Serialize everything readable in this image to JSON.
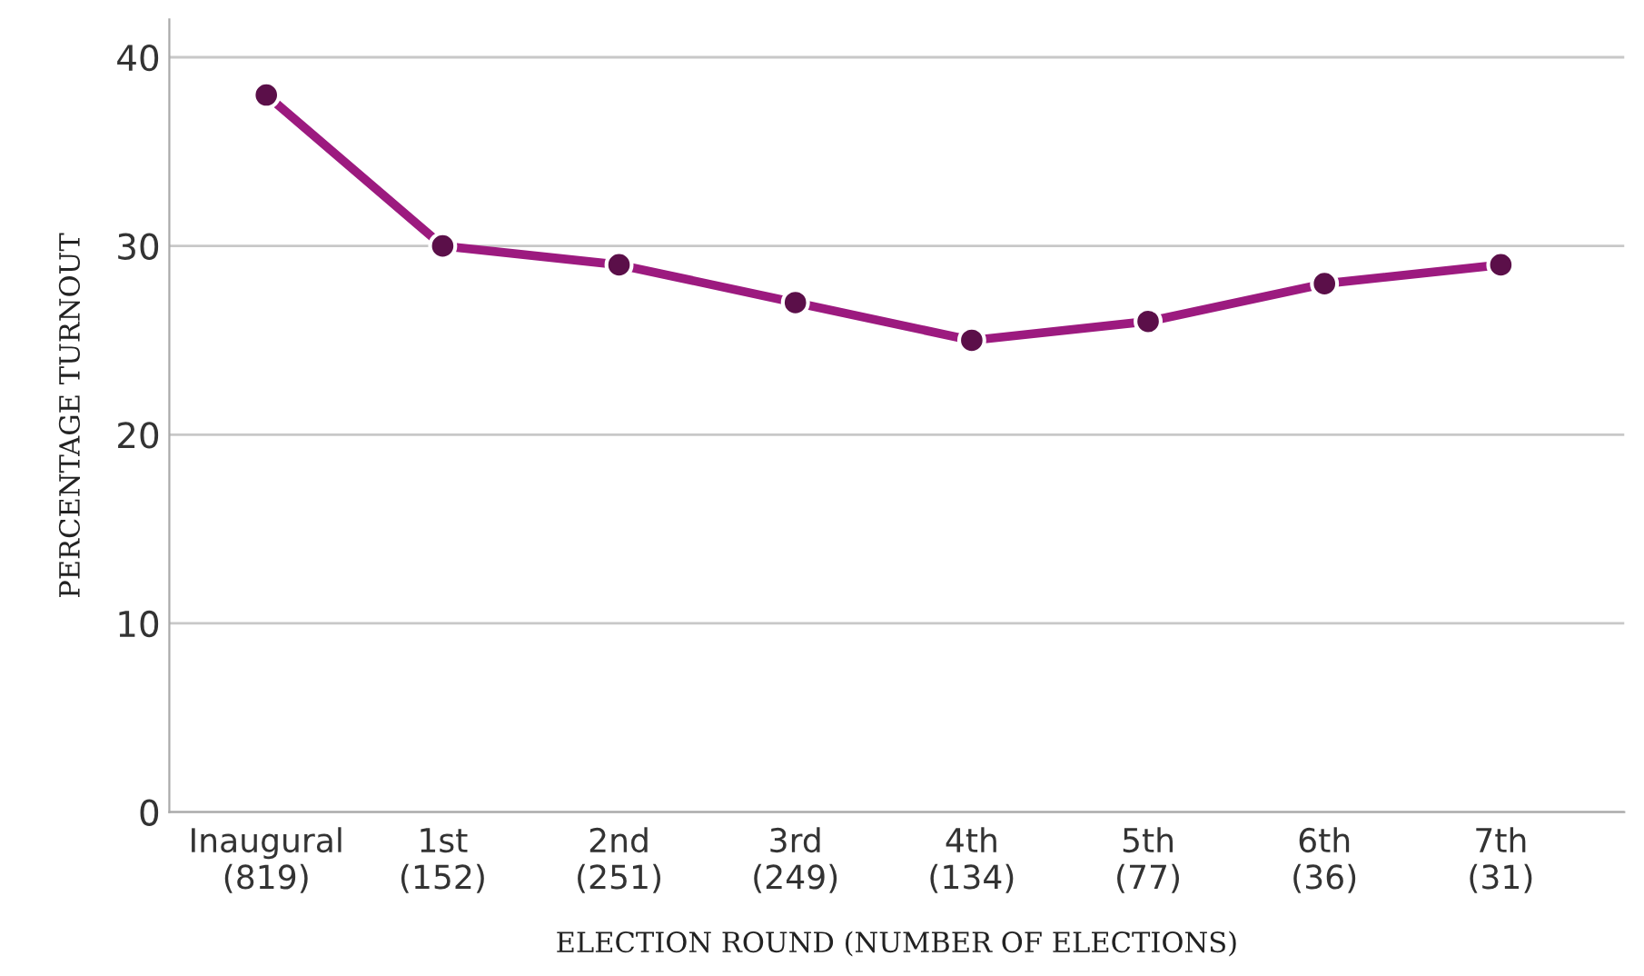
{
  "chart_data": {
    "type": "line",
    "xlabel": "ELECTION ROUND (NUMBER OF ELECTIONS)",
    "ylabel": "PERCENTAGE TURNOUT",
    "categories": [
      "Inaugural\n(819)",
      "1st\n(152)",
      "2nd\n(251)",
      "3rd\n(249)",
      "4th\n(134)",
      "5th\n(77)",
      "6th\n(36)",
      "7th\n(31)"
    ],
    "series": [
      {
        "color": "#9c1a7f",
        "values": [
          38,
          30,
          29,
          27,
          25,
          26,
          28,
          29
        ]
      }
    ],
    "marker": "circle",
    "line_style": "solid",
    "ylim": [
      0,
      42
    ],
    "yticks": [
      0,
      10,
      20,
      30,
      40
    ],
    "grid": "y",
    "legend": false
  }
}
